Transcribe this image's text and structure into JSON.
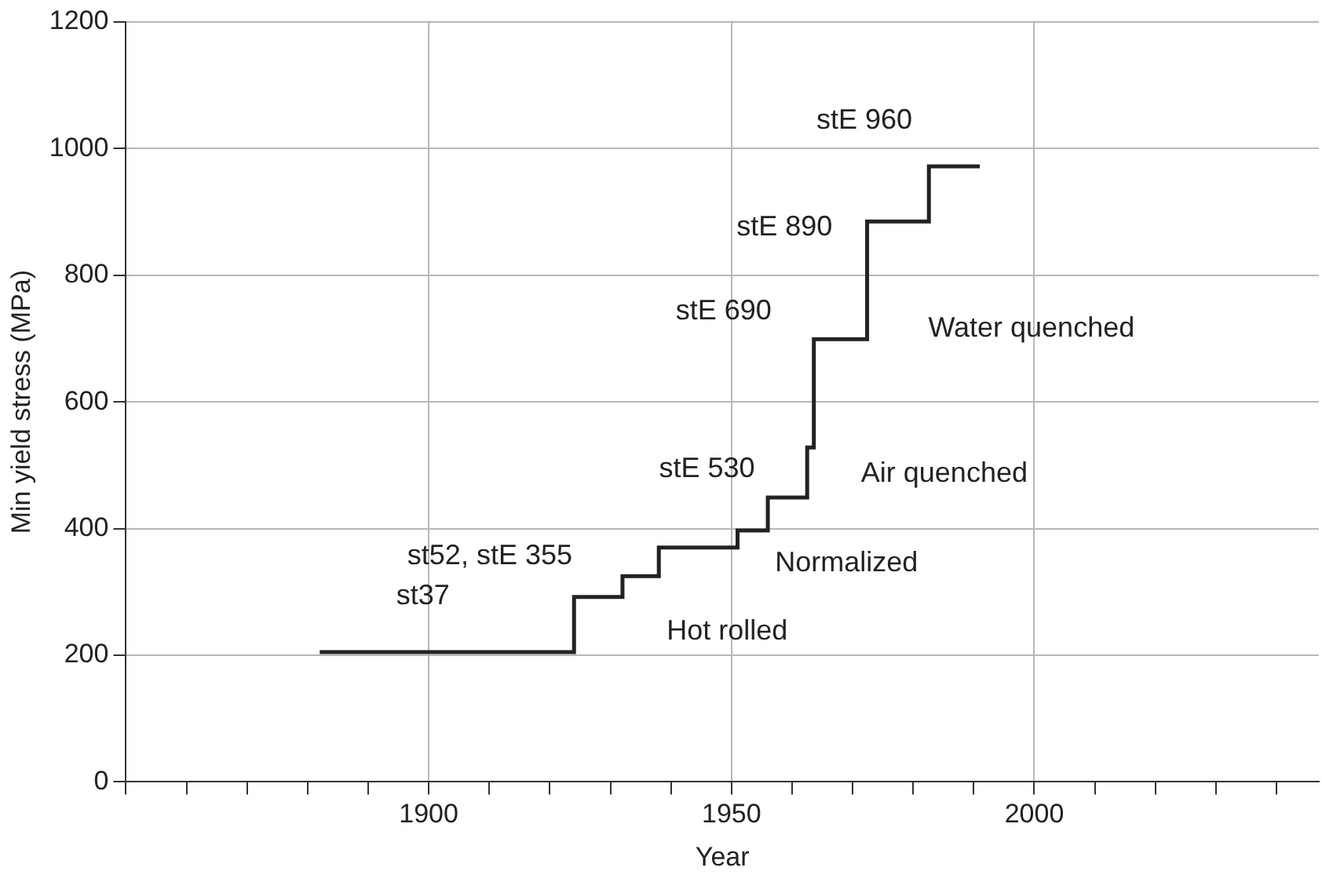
{
  "chart_data": {
    "type": "step",
    "xlabel": "Year",
    "ylabel": "Min yield stress (MPa)",
    "x": [
      1882,
      1924,
      1932,
      1938,
      1951,
      1956,
      1962.5,
      1963.6,
      1972.4,
      1982.6,
      1991
    ],
    "values": [
      205,
      292,
      325,
      370,
      397,
      449,
      528,
      699,
      885,
      972,
      972
    ],
    "color": "#222222",
    "xlim": [
      1850,
      2047
    ],
    "xticks": [
      {
        "value": 1850,
        "label": null
      },
      {
        "value": 1860,
        "label": null
      },
      {
        "value": 1870,
        "label": null
      },
      {
        "value": 1880,
        "label": null
      },
      {
        "value": 1890,
        "label": null
      },
      1900,
      {
        "value": 1910,
        "label": null
      },
      {
        "value": 1920,
        "label": null
      },
      {
        "value": 1930,
        "label": null
      },
      {
        "value": 1940,
        "label": null
      },
      1950,
      {
        "value": 1960,
        "label": null
      },
      {
        "value": 1970,
        "label": null
      },
      {
        "value": 1980,
        "label": null
      },
      {
        "value": 1990,
        "label": null
      },
      2000,
      {
        "value": 2010,
        "label": null
      },
      {
        "value": 2020,
        "label": null
      },
      {
        "value": 2030,
        "label": null
      },
      {
        "value": 2040,
        "label": null
      }
    ],
    "ylim": [
      0,
      1200
    ],
    "yticks": [
      0,
      200,
      400,
      600,
      800,
      1000,
      1200
    ],
    "grid": true,
    "annotations": [
      "st37",
      "st52, stE 355",
      "stE 530",
      "stE 690",
      "stE 890",
      "stE 960",
      "Water quenched",
      "Air quenched",
      "Normalized",
      "Hot rolled"
    ]
  }
}
